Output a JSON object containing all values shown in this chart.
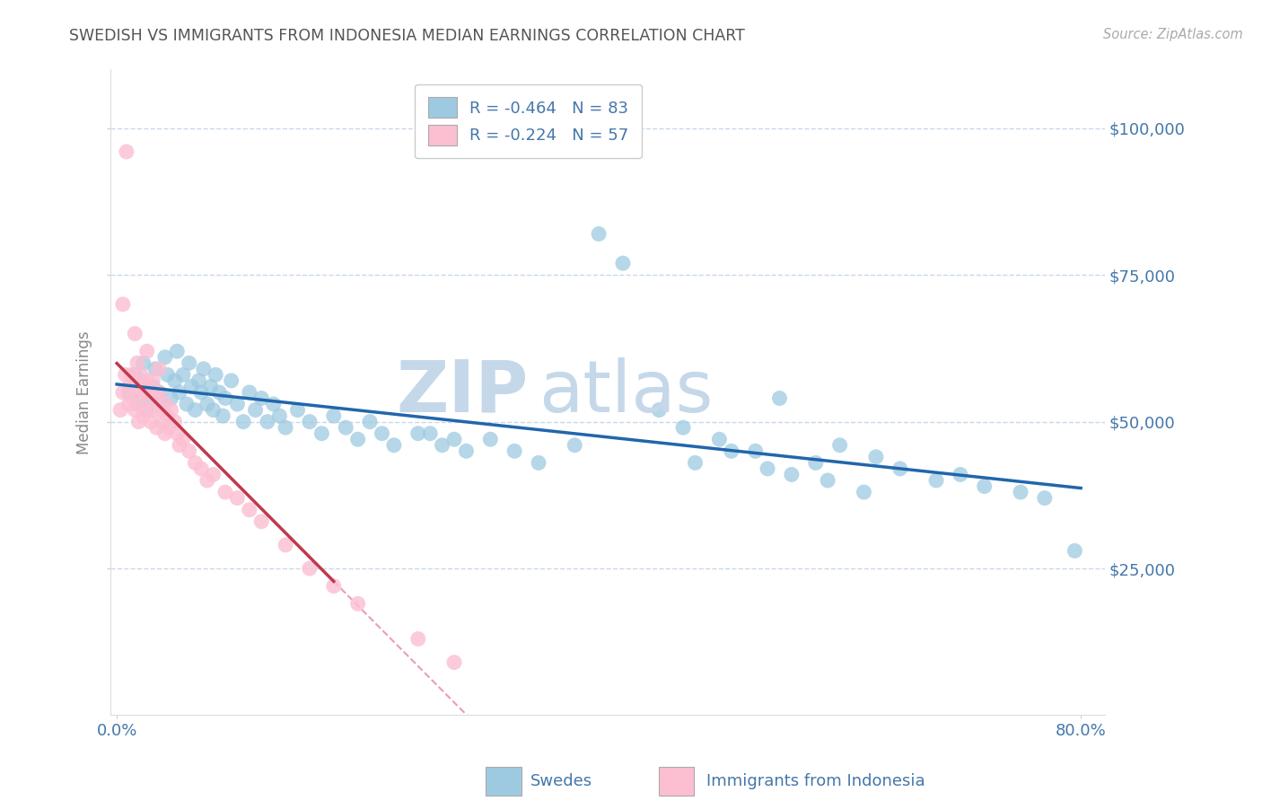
{
  "title": "SWEDISH VS IMMIGRANTS FROM INDONESIA MEDIAN EARNINGS CORRELATION CHART",
  "source": "Source: ZipAtlas.com",
  "ylabel": "Median Earnings",
  "watermark_zip": "ZIP",
  "watermark_atlas": "atlas",
  "legend_line1_r": "R = -0.464",
  "legend_line1_n": "N = 83",
  "legend_line2_r": "R = -0.224",
  "legend_line2_n": "N = 57",
  "yticks": [
    25000,
    50000,
    75000,
    100000
  ],
  "ytick_labels": [
    "$25,000",
    "$50,000",
    "$75,000",
    "$100,000"
  ],
  "blue_scatter_color": "#9ecae1",
  "pink_scatter_color": "#fcbfd2",
  "blue_line_color": "#2166ac",
  "pink_line_color": "#c0384b",
  "pink_dash_color": "#e8a0aa",
  "grid_color": "#c8d8e8",
  "title_color": "#555555",
  "axis_tick_color": "#4477aa",
  "source_color": "#aaaaaa",
  "ylabel_color": "#888888",
  "background_color": "#ffffff",
  "legend_text_color": "#4477aa",
  "watermark_zip_color": "#c5d8ea",
  "watermark_atlas_color": "#c5d8ea",
  "xlim": [
    -0.005,
    0.82
  ],
  "ylim": [
    0,
    110000
  ],
  "swedes_x": [
    0.01,
    0.015,
    0.018,
    0.02,
    0.022,
    0.025,
    0.028,
    0.03,
    0.032,
    0.035,
    0.038,
    0.04,
    0.042,
    0.045,
    0.048,
    0.05,
    0.052,
    0.055,
    0.058,
    0.06,
    0.062,
    0.065,
    0.068,
    0.07,
    0.072,
    0.075,
    0.078,
    0.08,
    0.082,
    0.085,
    0.088,
    0.09,
    0.095,
    0.1,
    0.105,
    0.11,
    0.115,
    0.12,
    0.125,
    0.13,
    0.135,
    0.14,
    0.15,
    0.16,
    0.17,
    0.18,
    0.19,
    0.2,
    0.21,
    0.22,
    0.23,
    0.25,
    0.27,
    0.29,
    0.31,
    0.33,
    0.35,
    0.38,
    0.4,
    0.42,
    0.45,
    0.47,
    0.5,
    0.53,
    0.55,
    0.58,
    0.6,
    0.63,
    0.65,
    0.68,
    0.7,
    0.72,
    0.75,
    0.77,
    0.795,
    0.26,
    0.28,
    0.48,
    0.51,
    0.54,
    0.56,
    0.59,
    0.62
  ],
  "swedes_y": [
    55000,
    58000,
    53000,
    57000,
    60000,
    52000,
    54000,
    56000,
    59000,
    55000,
    53000,
    61000,
    58000,
    54000,
    57000,
    62000,
    55000,
    58000,
    53000,
    60000,
    56000,
    52000,
    57000,
    55000,
    59000,
    53000,
    56000,
    52000,
    58000,
    55000,
    51000,
    54000,
    57000,
    53000,
    50000,
    55000,
    52000,
    54000,
    50000,
    53000,
    51000,
    49000,
    52000,
    50000,
    48000,
    51000,
    49000,
    47000,
    50000,
    48000,
    46000,
    48000,
    46000,
    45000,
    47000,
    45000,
    43000,
    46000,
    82000,
    77000,
    52000,
    49000,
    47000,
    45000,
    54000,
    43000,
    46000,
    44000,
    42000,
    40000,
    41000,
    39000,
    38000,
    37000,
    28000,
    48000,
    47000,
    43000,
    45000,
    42000,
    41000,
    40000,
    38000
  ],
  "indonesia_x": [
    0.003,
    0.005,
    0.007,
    0.008,
    0.01,
    0.01,
    0.012,
    0.013,
    0.015,
    0.015,
    0.017,
    0.018,
    0.018,
    0.02,
    0.02,
    0.022,
    0.022,
    0.023,
    0.025,
    0.025,
    0.027,
    0.028,
    0.03,
    0.03,
    0.032,
    0.033,
    0.035,
    0.037,
    0.038,
    0.04,
    0.04,
    0.042,
    0.043,
    0.045,
    0.048,
    0.05,
    0.052,
    0.055,
    0.06,
    0.065,
    0.07,
    0.075,
    0.08,
    0.09,
    0.1,
    0.11,
    0.12,
    0.14,
    0.16,
    0.18,
    0.2,
    0.25,
    0.28,
    0.015,
    0.025,
    0.035,
    0.005
  ],
  "indonesia_y": [
    52000,
    55000,
    58000,
    96000,
    53000,
    56000,
    58000,
    54000,
    57000,
    52000,
    60000,
    55000,
    50000,
    58000,
    53000,
    56000,
    51000,
    55000,
    57000,
    52000,
    55000,
    50000,
    57000,
    52000,
    54000,
    49000,
    55000,
    52000,
    50000,
    53000,
    48000,
    51000,
    49000,
    52000,
    50000,
    48000,
    46000,
    47000,
    45000,
    43000,
    42000,
    40000,
    41000,
    38000,
    37000,
    35000,
    33000,
    29000,
    25000,
    22000,
    19000,
    13000,
    9000,
    65000,
    62000,
    59000,
    70000
  ]
}
